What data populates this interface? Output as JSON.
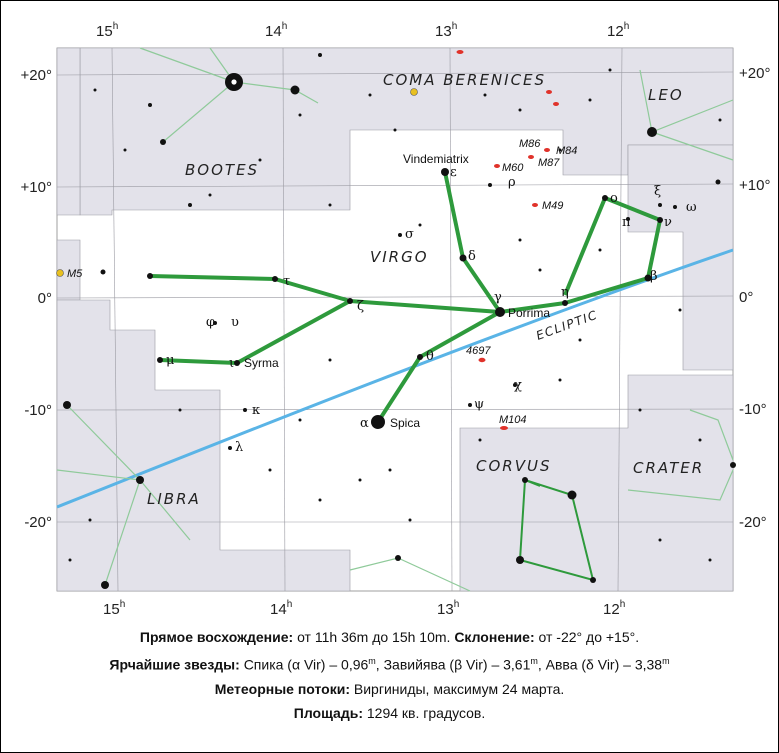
{
  "map": {
    "ra_axis": {
      "top_labels": [
        {
          "hour": "15",
          "unit": "h"
        },
        {
          "hour": "14",
          "unit": "h"
        },
        {
          "hour": "13",
          "unit": "h"
        },
        {
          "hour": "12",
          "unit": "h"
        }
      ],
      "bottom_labels": [
        {
          "hour": "15",
          "unit": "h"
        },
        {
          "hour": "14",
          "unit": "h"
        },
        {
          "hour": "13",
          "unit": "h"
        },
        {
          "hour": "12",
          "unit": "h"
        }
      ]
    },
    "dec_axis": {
      "left_labels": [
        "+20°",
        "+10°",
        "0°",
        "-10°",
        "-20°"
      ],
      "right_labels": [
        "+20°",
        "+10°",
        "0°",
        "-10°",
        "-20°"
      ]
    },
    "constellations": [
      "COMA BERENICES",
      "LEO",
      "BOOTES",
      "VIRGO",
      "LIBRA",
      "CORVUS",
      "CRATER"
    ],
    "named_stars": [
      "Vindemiatrix",
      "Porrima",
      "Spica",
      "Syrma"
    ],
    "greek_letters": [
      "ε",
      "δ",
      "γ",
      "ζ",
      "τ",
      "μ",
      "ι",
      "θ",
      "η",
      "β",
      "ν",
      "π",
      "ο",
      "ξ",
      "ω",
      "σ",
      "ρ",
      "φ",
      "υ",
      "κ",
      "λ",
      "ψ",
      "χ",
      "α"
    ],
    "deep_sky_objects": [
      "M5",
      "M86",
      "M84",
      "M87",
      "M60",
      "M49",
      "4697",
      "M104"
    ],
    "ecliptic_label": "ECLIPTIC",
    "colors": {
      "stick_figure": "#2e9a3c",
      "ecliptic": "#5ab4e6",
      "outer_region": "#e3e2ea",
      "neighbor_lines": "#8fca9a",
      "galaxy": "#e0322a",
      "cluster": "#e8c020"
    }
  },
  "info": {
    "ra_label": "Прямое восхождение:",
    "ra_value": "от 11h 36m до 15h 10m.",
    "dec_label": "Склонение:",
    "dec_value": "от -22° до +15°.",
    "brightest_label": "Ярчайшие звезды:",
    "brightest_value": "Спика (α Vir) – 0,96",
    "brightest_value_2": ", Завийява (β Vir) – 3,61",
    "brightest_value_3": ", Авва (δ Vir) – 3,38",
    "mag_unit": "m",
    "meteor_label": "Метеорные потоки:",
    "meteor_value": "Виргиниды, максимум 24 марта.",
    "area_label": "Площадь:",
    "area_value": "1294 кв. градусов."
  }
}
